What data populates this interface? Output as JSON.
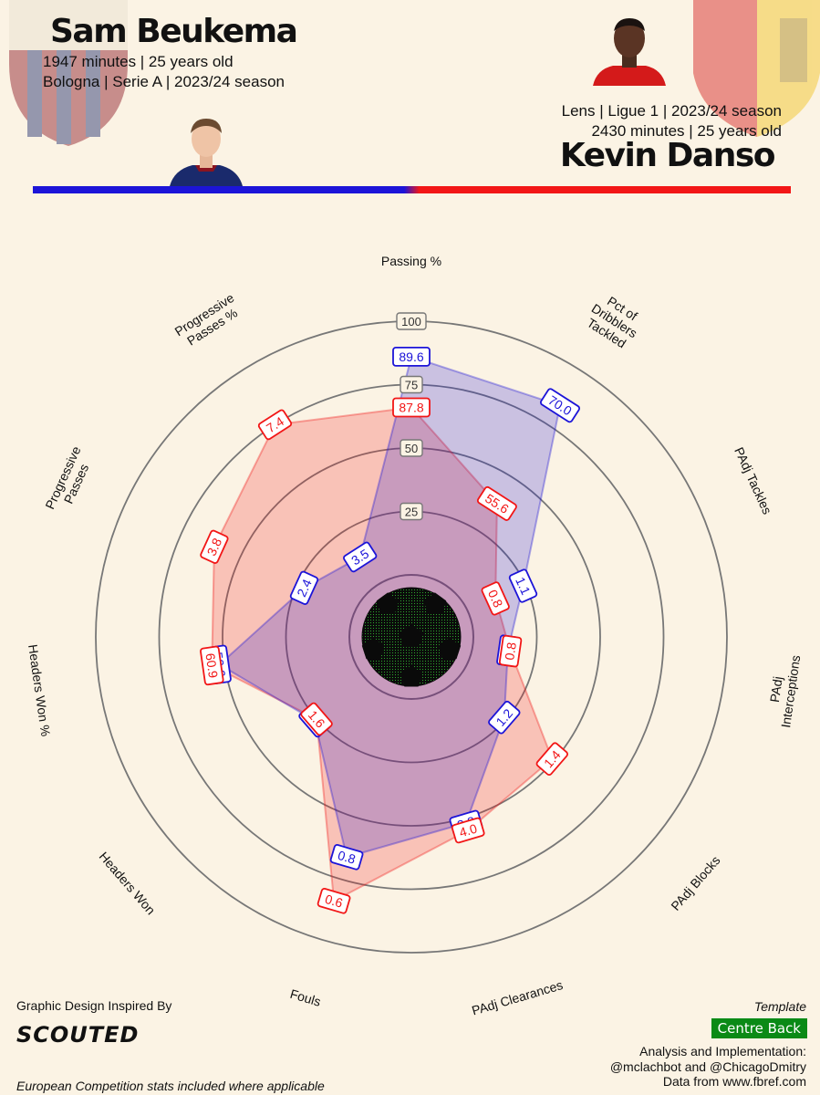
{
  "player1": {
    "name": "Sam Beukema",
    "line1": "1947 minutes | 25 years old",
    "line2": "Bologna | Serie A | 2023/24 season",
    "color": "#1c14d8"
  },
  "player2": {
    "name": "Kevin Danso",
    "line1": "Lens | Ligue 1 | 2023/24 season",
    "line2": "2430 minutes | 25 years old",
    "color": "#f21616"
  },
  "footer": {
    "inspired": "Graphic Design Inspired By",
    "brand": "SCOUTED",
    "note": "European Competition stats included where applicable",
    "template_label": "Template",
    "template": "Centre Back",
    "analysis1": "Analysis and Implementation:",
    "analysis2": "@mclachbot and @ChicagoDmitry",
    "source": "Data from www.fbref.com"
  },
  "chart_data": {
    "type": "radar",
    "rings": [
      "25",
      "50",
      "75",
      "100"
    ],
    "categories": [
      "Passing %",
      "Pct of Dribblers Tackled",
      "PAdj Tackles",
      "PAdj Interceptions",
      "PAdj Blocks",
      "PAdj Clearances",
      "Fouls",
      "Headers Won",
      "Headers Won %",
      "Progressive Passes",
      "Progressive Passes %"
    ],
    "series": [
      {
        "name": "Sam Beukema",
        "color": "#1c14d8",
        "labels": [
          "89.6",
          "70.0",
          "1.1",
          "0.8",
          "1.2",
          "3.8",
          "0.8",
          "1.6",
          "50.6",
          "2.4",
          "3.5"
        ],
        "percentiles": [
          86,
          84,
          24,
          14,
          24,
          52,
          66,
          26,
          52,
          22,
          13
        ]
      },
      {
        "name": "Kevin Danso",
        "color": "#f21616",
        "labels": [
          "87.8",
          "55.6",
          "0.8",
          "0.8",
          "1.4",
          "4.0",
          "0.6",
          "1.6",
          "60.9",
          "3.8",
          "7.4"
        ],
        "percentiles": [
          66,
          38,
          12,
          15,
          49,
          55,
          84,
          25,
          55,
          61,
          75
        ]
      }
    ]
  }
}
